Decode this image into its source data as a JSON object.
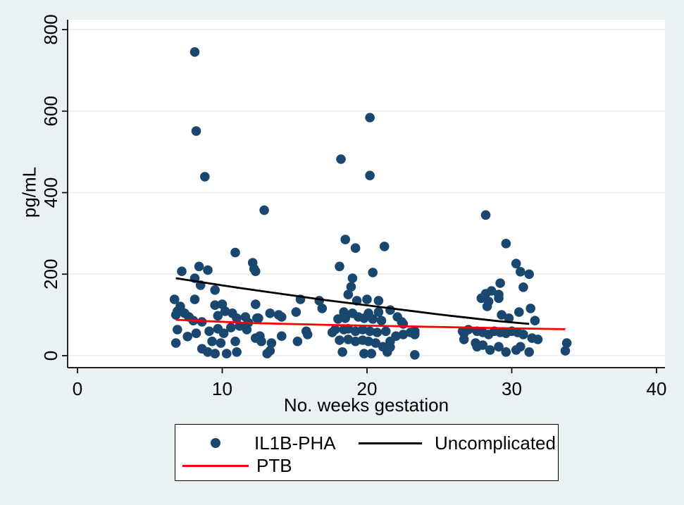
{
  "colors": {
    "canvas_background": "#eaf1f3",
    "plot_background": "#ffffff",
    "gridline": "#e4eef4",
    "axis": "#000000",
    "marker": "#1a476f",
    "uncomplicated_line": "#000000",
    "ptb_line": "#ff0000",
    "legend_border": "#000000"
  },
  "chart_data": {
    "type": "scatter",
    "xlabel": "No. weeks gestation",
    "ylabel": "pg/mL",
    "xlim": [
      0,
      40
    ],
    "ylim": [
      0,
      800
    ],
    "x_ticks": [
      0,
      10,
      20,
      30,
      40
    ],
    "y_ticks": [
      0,
      200,
      400,
      600,
      800
    ],
    "grid": "horizontal gridlines on",
    "legend_position": "bottom boxed",
    "series": [
      {
        "name": "IL1B-PHA",
        "kind": "scatter",
        "color": "#1a476f",
        "points": [
          [
            8.1,
            745
          ],
          [
            8.2,
            551
          ],
          [
            8.8,
            439
          ],
          [
            12.9,
            357
          ],
          [
            10.9,
            253
          ],
          [
            12.1,
            228
          ],
          [
            8.4,
            219
          ],
          [
            12.2,
            213
          ],
          [
            9.0,
            210
          ],
          [
            12.3,
            207
          ],
          [
            7.2,
            207
          ],
          [
            8.1,
            190
          ],
          [
            8.5,
            173
          ],
          [
            9.5,
            161
          ],
          [
            6.7,
            138
          ],
          [
            8.1,
            138
          ],
          [
            15.4,
            138
          ],
          [
            10.0,
            126
          ],
          [
            12.3,
            126
          ],
          [
            9.5,
            124
          ],
          [
            7.1,
            121
          ],
          [
            6.9,
            109
          ],
          [
            10.2,
            109
          ],
          [
            13.3,
            104
          ],
          [
            10.7,
            104
          ],
          [
            7.4,
            104
          ],
          [
            6.8,
            100
          ],
          [
            9.7,
            98
          ],
          [
            13.9,
            100
          ],
          [
            15.1,
            107
          ],
          [
            11.6,
            95
          ],
          [
            7.7,
            95
          ],
          [
            14.1,
            95
          ],
          [
            11.0,
            92
          ],
          [
            12.5,
            92
          ],
          [
            12.4,
            92
          ],
          [
            11.8,
            81
          ],
          [
            8.0,
            86
          ],
          [
            8.6,
            83
          ],
          [
            11.2,
            73
          ],
          [
            10.6,
            69
          ],
          [
            9.7,
            66
          ],
          [
            6.9,
            64
          ],
          [
            11.7,
            64
          ],
          [
            9.1,
            60
          ],
          [
            15.8,
            60
          ],
          [
            15.9,
            52
          ],
          [
            8.2,
            55
          ],
          [
            10.1,
            55
          ],
          [
            12.6,
            48
          ],
          [
            7.6,
            47
          ],
          [
            14.1,
            48
          ],
          [
            12.3,
            43
          ],
          [
            9.3,
            35
          ],
          [
            10.9,
            35
          ],
          [
            12.7,
            35
          ],
          [
            15.2,
            35
          ],
          [
            13.4,
            31
          ],
          [
            9.9,
            31
          ],
          [
            6.8,
            31
          ],
          [
            8.6,
            17
          ],
          [
            13.3,
            12
          ],
          [
            9.0,
            9
          ],
          [
            11.0,
            9
          ],
          [
            9.5,
            5
          ],
          [
            10.3,
            5
          ],
          [
            13.1,
            5
          ],
          [
            16.7,
            135
          ],
          [
            16.9,
            116
          ],
          [
            17.6,
            57
          ],
          [
            17.8,
            64
          ],
          [
            20.2,
            584
          ],
          [
            18.2,
            482
          ],
          [
            20.2,
            442
          ],
          [
            18.5,
            285
          ],
          [
            21.2,
            268
          ],
          [
            19.2,
            264
          ],
          [
            18.1,
            219
          ],
          [
            20.4,
            204
          ],
          [
            19.0,
            190
          ],
          [
            18.9,
            169
          ],
          [
            18.7,
            150
          ],
          [
            20.0,
            138
          ],
          [
            19.3,
            135
          ],
          [
            20.8,
            135
          ],
          [
            21.6,
            112
          ],
          [
            18.4,
            107
          ],
          [
            20.8,
            107
          ],
          [
            19.0,
            104
          ],
          [
            20.1,
            104
          ],
          [
            22.1,
            95
          ],
          [
            19.4,
            95
          ],
          [
            19.8,
            92
          ],
          [
            18.5,
            92
          ],
          [
            20.4,
            90
          ],
          [
            18.0,
            90
          ],
          [
            21.0,
            86
          ],
          [
            22.4,
            83
          ],
          [
            22.5,
            78
          ],
          [
            18.7,
            66
          ],
          [
            18.4,
            64
          ],
          [
            19.7,
            64
          ],
          [
            19.2,
            60
          ],
          [
            20.2,
            60
          ],
          [
            21.3,
            60
          ],
          [
            23.3,
            60
          ],
          [
            23.0,
            57
          ],
          [
            20.7,
            57
          ],
          [
            22.5,
            52
          ],
          [
            23.3,
            52
          ],
          [
            22.0,
            48
          ],
          [
            18.7,
            40
          ],
          [
            18.1,
            38
          ],
          [
            19.7,
            38
          ],
          [
            19.2,
            35
          ],
          [
            20.1,
            35
          ],
          [
            21.6,
            35
          ],
          [
            20.6,
            31
          ],
          [
            21.1,
            22
          ],
          [
            21.6,
            21
          ],
          [
            18.3,
            9
          ],
          [
            21.4,
            9
          ],
          [
            19.8,
            5
          ],
          [
            20.3,
            5
          ],
          [
            23.3,
            2
          ],
          [
            28.2,
            345
          ],
          [
            29.6,
            275
          ],
          [
            30.3,
            226
          ],
          [
            30.6,
            206
          ],
          [
            31.2,
            200
          ],
          [
            29.2,
            178
          ],
          [
            30.8,
            168
          ],
          [
            28.6,
            159
          ],
          [
            28.2,
            152
          ],
          [
            29.1,
            150
          ],
          [
            27.9,
            141
          ],
          [
            29.1,
            141
          ],
          [
            28.4,
            133
          ],
          [
            28.3,
            121
          ],
          [
            31.3,
            116
          ],
          [
            30.5,
            107
          ],
          [
            29.3,
            100
          ],
          [
            29.8,
            92
          ],
          [
            31.6,
            86
          ],
          [
            27.0,
            64
          ],
          [
            26.6,
            60
          ],
          [
            27.6,
            60
          ],
          [
            28.8,
            60
          ],
          [
            30.0,
            60
          ],
          [
            28.0,
            57
          ],
          [
            29.2,
            57
          ],
          [
            30.4,
            57
          ],
          [
            29.6,
            55
          ],
          [
            26.7,
            55
          ],
          [
            28.4,
            52
          ],
          [
            30.8,
            52
          ],
          [
            31.4,
            43
          ],
          [
            31.8,
            40
          ],
          [
            26.7,
            40
          ],
          [
            27.5,
            31
          ],
          [
            28.0,
            26
          ],
          [
            29.1,
            22
          ],
          [
            30.6,
            22
          ],
          [
            27.6,
            22
          ],
          [
            28.5,
            14
          ],
          [
            30.3,
            14
          ],
          [
            29.6,
            9
          ],
          [
            31.2,
            9
          ],
          [
            33.8,
            31
          ],
          [
            33.7,
            12
          ]
        ]
      },
      {
        "name": "Uncomplicated",
        "kind": "line",
        "color": "#000000",
        "points": [
          [
            6.8,
            190
          ],
          [
            9,
            178
          ],
          [
            11,
            167
          ],
          [
            13,
            157
          ],
          [
            15,
            147
          ],
          [
            17,
            137
          ],
          [
            19,
            128
          ],
          [
            21,
            119
          ],
          [
            23,
            110
          ],
          [
            25,
            101
          ],
          [
            27,
            93
          ],
          [
            29,
            85
          ],
          [
            31.2,
            78
          ]
        ]
      },
      {
        "name": "PTB",
        "kind": "line",
        "color": "#ff0000",
        "points": [
          [
            6.8,
            88
          ],
          [
            12,
            80
          ],
          [
            18,
            75
          ],
          [
            24,
            71
          ],
          [
            30,
            67
          ],
          [
            33.7,
            65
          ]
        ]
      }
    ]
  }
}
